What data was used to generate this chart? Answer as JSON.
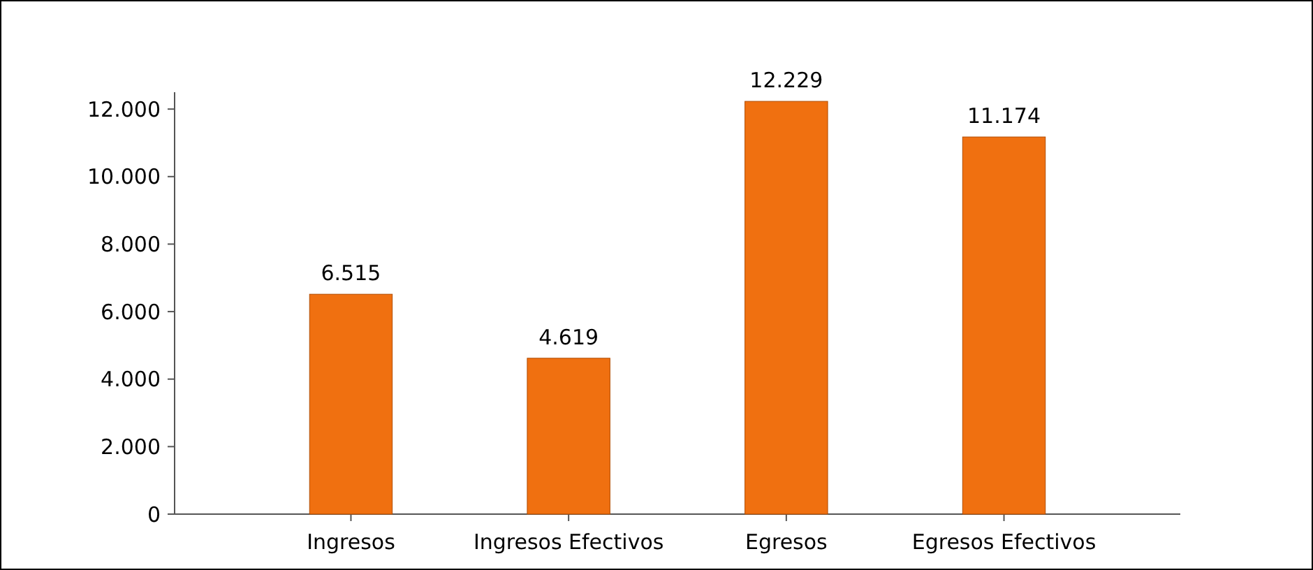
{
  "chart_data": {
    "type": "bar",
    "categories": [
      "Ingresos",
      "Ingresos Efectivos",
      "Egresos",
      "Egresos Efectivos"
    ],
    "values": [
      6515,
      4619,
      12229,
      11174
    ],
    "value_labels": [
      "6.515",
      "4.619",
      "12.229",
      "11.174"
    ],
    "color": "#f07010",
    "ylim": [
      0,
      12500
    ],
    "yticks": [
      {
        "value": 0,
        "label": "0"
      },
      {
        "value": 2000,
        "label": "2.000"
      },
      {
        "value": 4000,
        "label": "4.000"
      },
      {
        "value": 6000,
        "label": "6.000"
      },
      {
        "value": 8000,
        "label": "8.000"
      },
      {
        "value": 10000,
        "label": "10.000"
      },
      {
        "value": 12000,
        "label": "12.000"
      }
    ]
  }
}
